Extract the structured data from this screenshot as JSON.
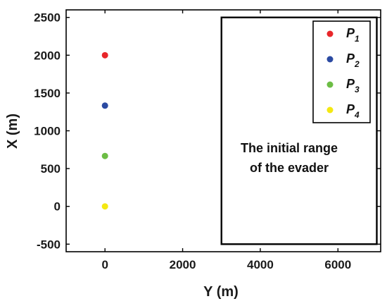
{
  "chart_data": {
    "type": "scatter",
    "xlabel": "Y (m)",
    "ylabel": "X (m)",
    "xlim": [
      -1000,
      7100
    ],
    "ylim": [
      -600,
      2600
    ],
    "xticks": [
      0,
      2000,
      4000,
      6000
    ],
    "yticks": [
      -500,
      0,
      500,
      1000,
      1500,
      2000,
      2500
    ],
    "series": [
      {
        "name": "P",
        "sub": "1",
        "color": "#e8262a",
        "x": 0,
        "y": 2000
      },
      {
        "name": "P",
        "sub": "2",
        "color": "#2b4aa2",
        "x": 0,
        "y": 1333
      },
      {
        "name": "P",
        "sub": "3",
        "color": "#6cbd45",
        "x": 0,
        "y": 667
      },
      {
        "name": "P",
        "sub": "4",
        "color": "#f4e812",
        "x": 0,
        "y": 0
      }
    ],
    "region": {
      "x0": 3000,
      "x1": 7000,
      "y0": -500,
      "y1": 2500
    },
    "annotation": [
      "The initial range",
      "of the evader"
    ],
    "legend_position": "top-right",
    "grid": false
  }
}
